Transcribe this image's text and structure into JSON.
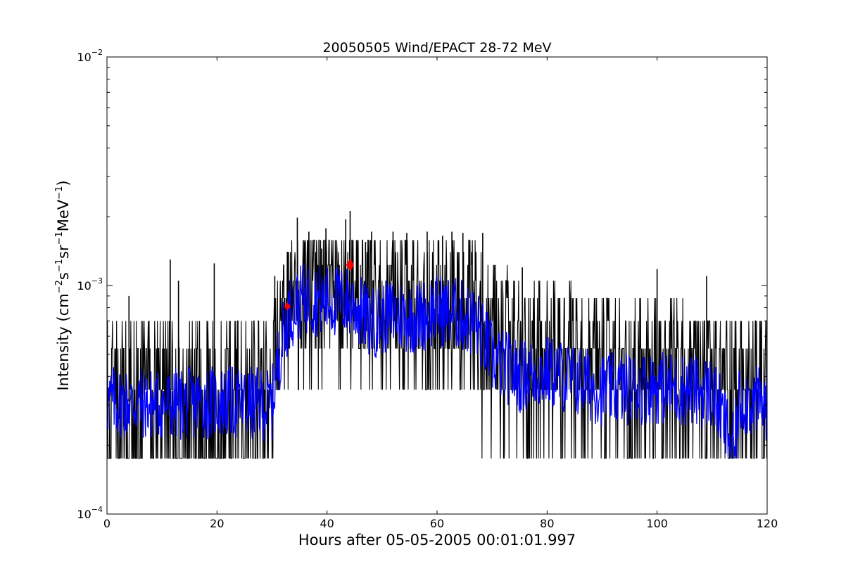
{
  "chart_data": {
    "type": "line",
    "title": "20050505 Wind/EPACT 28-72 MeV",
    "xlabel": "Hours after 05-05-2005 00:01:01.997",
    "ylabel_parts": [
      "Intensity (cm",
      "−2",
      "s",
      "−1",
      "sr",
      "−1",
      "MeV",
      "−1",
      ")"
    ],
    "xlim": [
      0,
      120
    ],
    "ylim": [
      0.0001,
      0.01
    ],
    "yscale": "log",
    "grid": false,
    "x_ticks": [
      {
        "value": 0,
        "label": "0"
      },
      {
        "value": 20,
        "label": "20"
      },
      {
        "value": 40,
        "label": "40"
      },
      {
        "value": 60,
        "label": "60"
      },
      {
        "value": 80,
        "label": "80"
      },
      {
        "value": 100,
        "label": "100"
      },
      {
        "value": 120,
        "label": "120"
      }
    ],
    "y_ticks": [
      {
        "value": 0.0001,
        "base": "10",
        "exp": "-4"
      },
      {
        "value": 0.001,
        "base": "10",
        "exp": "-3"
      },
      {
        "value": 0.01,
        "base": "10",
        "exp": "-2"
      }
    ],
    "series": [
      {
        "role": "raw",
        "color": "#000000",
        "sampling_minutes": 5,
        "count_levels": [
          0.000175,
          0.00035,
          0.00053,
          0.0007,
          0.00088,
          0.00105,
          0.00123,
          0.0014,
          0.00158
        ],
        "envelope": [
          {
            "x": 0,
            "base": 0.00032,
            "min": 0.000175,
            "max": 0.00072
          },
          {
            "x": 10,
            "base": 0.0003,
            "min": 0.000175,
            "max": 0.00072
          },
          {
            "x": 20,
            "base": 0.0003,
            "min": 0.000175,
            "max": 0.00072
          },
          {
            "x": 30,
            "base": 0.00031,
            "min": 0.000175,
            "max": 0.00072
          },
          {
            "x": 32,
            "base": 0.0006,
            "min": 0.00035,
            "max": 0.00125
          },
          {
            "x": 34,
            "base": 0.00082,
            "min": 0.00035,
            "max": 0.0016
          },
          {
            "x": 38,
            "base": 0.00085,
            "min": 0.00035,
            "max": 0.0016
          },
          {
            "x": 44,
            "base": 0.00085,
            "min": 0.000175,
            "max": 0.0016
          },
          {
            "x": 50,
            "base": 0.0007,
            "min": 0.000175,
            "max": 0.0016
          },
          {
            "x": 56,
            "base": 0.0007,
            "min": 0.000175,
            "max": 0.0016
          },
          {
            "x": 62,
            "base": 0.0007,
            "min": 0.000175,
            "max": 0.0016
          },
          {
            "x": 66,
            "base": 0.00068,
            "min": 0.000175,
            "max": 0.0016
          },
          {
            "x": 70,
            "base": 0.00048,
            "min": 0.000175,
            "max": 0.00125
          },
          {
            "x": 80,
            "base": 0.00042,
            "min": 0.000175,
            "max": 0.00105
          },
          {
            "x": 90,
            "base": 0.00036,
            "min": 0.000175,
            "max": 0.00088
          },
          {
            "x": 100,
            "base": 0.00035,
            "min": 0.000175,
            "max": 0.00088
          },
          {
            "x": 110,
            "base": 0.00034,
            "min": 0.000175,
            "max": 0.00072
          },
          {
            "x": 120,
            "base": 0.00032,
            "min": 0.000175,
            "max": 0.00072
          }
        ],
        "spikes": [
          {
            "x": 4.0,
            "y": 0.0009
          },
          {
            "x": 11.5,
            "y": 0.0013
          },
          {
            "x": 13.0,
            "y": 0.00105
          },
          {
            "x": 19.5,
            "y": 0.00125
          },
          {
            "x": 30.5,
            "y": 0.0011
          },
          {
            "x": 33.0,
            "y": 0.0014
          },
          {
            "x": 34.6,
            "y": 0.00198
          },
          {
            "x": 36.0,
            "y": 0.00155
          },
          {
            "x": 36.7,
            "y": 0.00172
          },
          {
            "x": 39.0,
            "y": 0.00145
          },
          {
            "x": 39.8,
            "y": 0.00178
          },
          {
            "x": 43.4,
            "y": 0.00195
          },
          {
            "x": 44.2,
            "y": 0.00212
          },
          {
            "x": 47.0,
            "y": 0.00155
          },
          {
            "x": 48.1,
            "y": 0.00172
          },
          {
            "x": 52.0,
            "y": 0.00172
          },
          {
            "x": 54.5,
            "y": 0.0017
          },
          {
            "x": 58.2,
            "y": 0.00172
          },
          {
            "x": 61.0,
            "y": 0.00165
          },
          {
            "x": 62.7,
            "y": 0.00172
          },
          {
            "x": 64.7,
            "y": 0.0017
          },
          {
            "x": 68.3,
            "y": 0.0017
          },
          {
            "x": 75.5,
            "y": 0.0012
          },
          {
            "x": 100.0,
            "y": 0.00118
          },
          {
            "x": 109.0,
            "y": 0.0011
          }
        ]
      },
      {
        "role": "smoothed",
        "color": "#0000ff",
        "profile": [
          {
            "x": 0,
            "y": 0.00031
          },
          {
            "x": 10,
            "y": 0.0003
          },
          {
            "x": 20,
            "y": 0.00031
          },
          {
            "x": 30,
            "y": 0.0003
          },
          {
            "x": 31.5,
            "y": 0.00052
          },
          {
            "x": 33,
            "y": 0.00075
          },
          {
            "x": 36,
            "y": 0.00088
          },
          {
            "x": 40,
            "y": 0.00085
          },
          {
            "x": 44,
            "y": 0.00085
          },
          {
            "x": 48,
            "y": 0.00068
          },
          {
            "x": 52,
            "y": 0.00075
          },
          {
            "x": 56,
            "y": 0.00072
          },
          {
            "x": 60,
            "y": 0.00078
          },
          {
            "x": 64,
            "y": 0.00075
          },
          {
            "x": 67,
            "y": 0.00068
          },
          {
            "x": 70,
            "y": 0.00048
          },
          {
            "x": 75,
            "y": 0.0004
          },
          {
            "x": 80,
            "y": 0.00042
          },
          {
            "x": 90,
            "y": 0.00035
          },
          {
            "x": 100,
            "y": 0.00036
          },
          {
            "x": 110,
            "y": 0.00034
          },
          {
            "x": 114,
            "y": 0.00018
          },
          {
            "x": 115,
            "y": 0.00032
          },
          {
            "x": 120,
            "y": 0.0003
          }
        ]
      },
      {
        "role": "markers",
        "color": "#ff0000",
        "points": [
          {
            "x": 32.8,
            "y": 0.00081,
            "marker": "diamond-small"
          },
          {
            "x": 44.2,
            "y": 0.00123,
            "marker": "diamond-large"
          }
        ]
      }
    ]
  }
}
